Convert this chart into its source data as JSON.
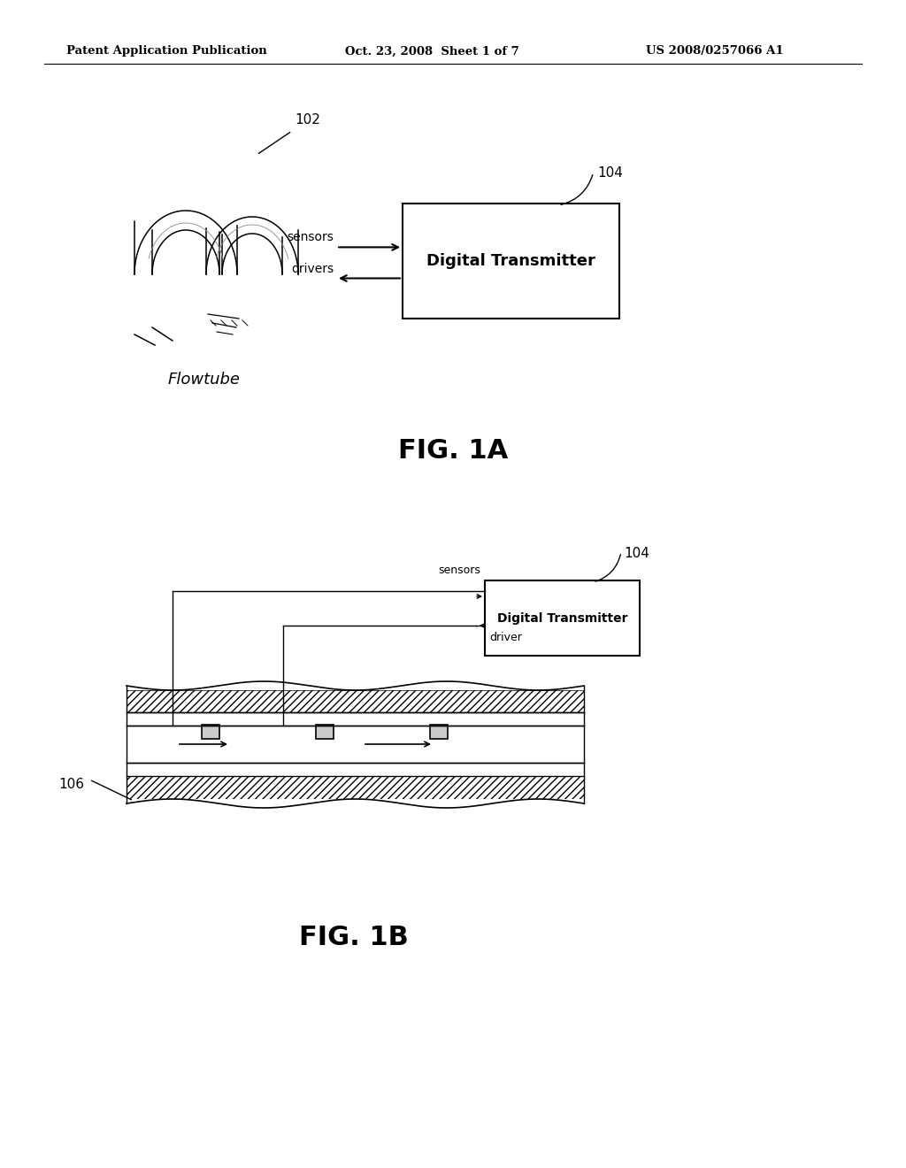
{
  "bg_color": "#ffffff",
  "header_left": "Patent Application Publication",
  "header_mid": "Oct. 23, 2008  Sheet 1 of 7",
  "header_right": "US 2008/0257066 A1",
  "fig1a_label": "FIG. 1A",
  "fig1b_label": "FIG. 1B",
  "ref_102": "102",
  "ref_104_1": "104",
  "ref_104_2": "104",
  "ref_106": "106",
  "label_flowtube": "Flowtube",
  "label_sensors_1a": "sensors",
  "label_drivers_1a": "drivers",
  "label_digital_transmitter_1a": "Digital Transmitter",
  "label_digital_transmitter_1b": "Digital Transmitter",
  "label_sensors_1b": "sensors",
  "label_driver_1b": "driver",
  "text_color": "#000000",
  "line_color": "#000000"
}
